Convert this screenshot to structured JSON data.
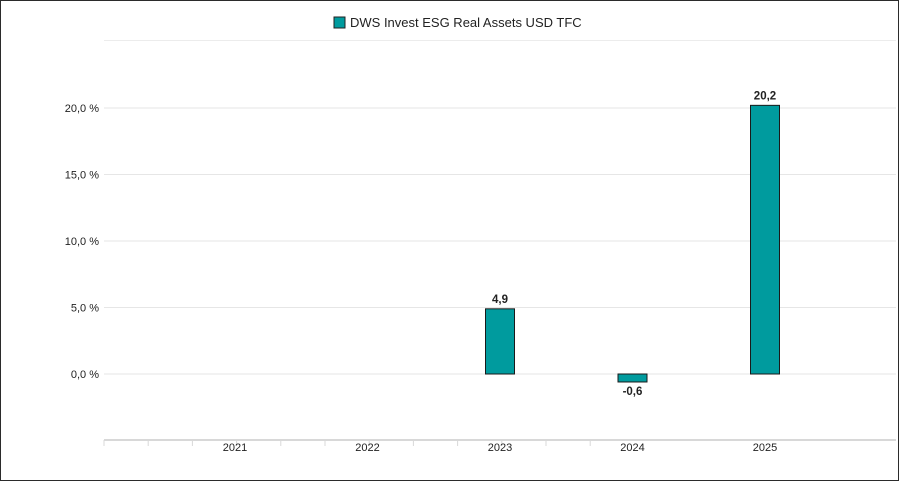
{
  "chart_data": {
    "type": "bar",
    "categories": [
      "2021",
      "2022",
      "2023",
      "2024",
      "2025"
    ],
    "series": [
      {
        "name": "DWS Invest ESG Real Assets USD TFC",
        "values": [
          null,
          null,
          4.9,
          -0.6,
          20.2
        ],
        "value_labels": [
          "",
          "",
          "4,9",
          "-0,6",
          "20,2"
        ],
        "color": "#009B9E"
      }
    ],
    "yticks": [
      {
        "value": 0,
        "label": "0,0 %"
      },
      {
        "value": 5,
        "label": "5,0 %"
      },
      {
        "value": 10,
        "label": "10,0 %"
      },
      {
        "value": 15,
        "label": "15,0 %"
      },
      {
        "value": 20,
        "label": "20,0 %"
      }
    ],
    "ylim": [
      -5,
      25
    ],
    "grid": true,
    "legend_position": "top-center",
    "title": "",
    "xlabel": "",
    "ylabel": ""
  }
}
